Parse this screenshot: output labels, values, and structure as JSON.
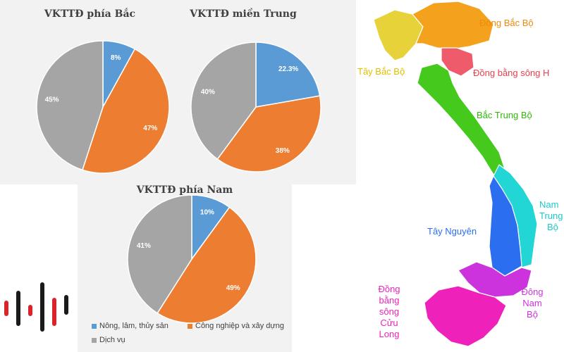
{
  "colors": {
    "agri": "#5b9bd5",
    "industry": "#ed7d31",
    "service": "#a5a5a5"
  },
  "chart_data": [
    {
      "type": "pie",
      "title": "VKTTĐ phía Bắc",
      "labels": [
        "Nông, lâm, thủy sản",
        "Công nghiệp và xây dựng",
        "Dịch vụ"
      ],
      "values": [
        8,
        47,
        45
      ],
      "value_labels": [
        "8%",
        "47%",
        "45%"
      ]
    },
    {
      "type": "pie",
      "title": "VKTTĐ miền Trung",
      "labels": [
        "Nông, lâm, thủy sản",
        "Công nghiệp và xây dựng",
        "Dịch vụ"
      ],
      "values": [
        22.3,
        38,
        40
      ],
      "value_labels": [
        "22.3%",
        "38%",
        "40%"
      ]
    },
    {
      "type": "pie",
      "title": "VKTTĐ phía Nam",
      "labels": [
        "Nông, lâm, thủy sản",
        "Công nghiệp và xây dựng",
        "Dịch vụ"
      ],
      "values": [
        10,
        49,
        41
      ],
      "value_labels": [
        "10%",
        "49%",
        "41%"
      ]
    }
  ],
  "legend": {
    "agri": "Nông, lâm, thủy sản",
    "industry": "Công nghiệp và xây dựng",
    "service": "Dịch vụ"
  },
  "map": {
    "regions": [
      {
        "name": "Đông Bắc Bộ",
        "color": "#f4a21d"
      },
      {
        "name": "Tây Bắc Bộ",
        "color": "#e8d23a"
      },
      {
        "name": "Đồng bằng sông Hồng",
        "color": "#ee5b6a"
      },
      {
        "name": "Bắc Trung Bộ",
        "color": "#45c91d"
      },
      {
        "name": "Nam Trung Bộ",
        "color": "#22d6d6"
      },
      {
        "name": "Tây Nguyên",
        "color": "#2c6ef0"
      },
      {
        "name": "Đông Nam Bộ",
        "color": "#cc33dd"
      },
      {
        "name": "Đồng bằng sông Cửu Long",
        "color": "#ee22bb"
      }
    ],
    "labels": {
      "dong_bac": "Đông Bắc Bộ",
      "tay_bac": "Tây Bắc Bộ",
      "dbsh": "Đồng bằng sông H",
      "bac_trung": "Bắc Trung Bộ",
      "nam_trung_1": "Nam",
      "nam_trung_2": "Trung",
      "nam_trung_3": "Bộ",
      "tay_nguyen": "Tây Nguyên",
      "dong_nam_1": "Đông",
      "dong_nam_2": "Nam",
      "dong_nam_3": "Bộ",
      "dbscl_1": "Đồng",
      "dbscl_2": "bằng",
      "dbscl_3": "sông",
      "dbscl_4": "Cửu",
      "dbscl_5": "Long"
    }
  },
  "logo": {
    "bar_colors": [
      "#d9232d",
      "#1a1a1a"
    ]
  }
}
